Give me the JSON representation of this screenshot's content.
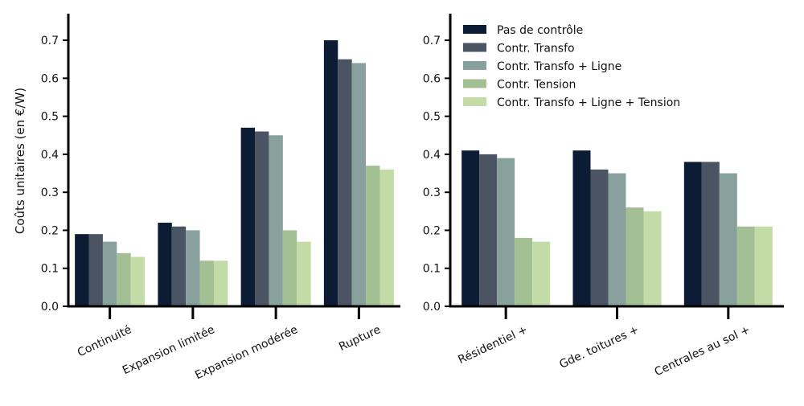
{
  "chart_data": {
    "type": "bar",
    "ylabel": "Coûts unitaires (en €/W)",
    "ylim": [
      0,
      0.77
    ],
    "yticks": [
      0.0,
      0.1,
      0.2,
      0.3,
      0.4,
      0.5,
      0.6,
      0.7
    ],
    "ytick_labels": [
      "0.0",
      "0.1",
      "0.2",
      "0.3",
      "0.4",
      "0.5",
      "0.6",
      "0.7"
    ],
    "legend": {
      "placement": "top-left of right panel",
      "entries": [
        {
          "label": "Pas de contrôle",
          "color": "#0c1c34"
        },
        {
          "label": "Contr. Transfo",
          "color": "#4b5462"
        },
        {
          "label": "Contr. Transfo + Ligne",
          "color": "#88a19d"
        },
        {
          "label": "Contr. Tension",
          "color": "#a3bf94"
        },
        {
          "label": "Contr. Transfo + Ligne + Tension",
          "color": "#c3dba6"
        }
      ]
    },
    "panels": [
      {
        "categories": [
          "Continuité",
          "Expansion limitée",
          "Expansion modérée",
          "Rupture"
        ],
        "series": [
          {
            "name": "Pas de contrôle",
            "values": [
              0.19,
              0.22,
              0.47,
              0.7
            ]
          },
          {
            "name": "Contr. Transfo",
            "values": [
              0.19,
              0.21,
              0.46,
              0.65
            ]
          },
          {
            "name": "Contr. Transfo + Ligne",
            "values": [
              0.17,
              0.2,
              0.45,
              0.64
            ]
          },
          {
            "name": "Contr. Tension",
            "values": [
              0.14,
              0.12,
              0.2,
              0.37
            ]
          },
          {
            "name": "Contr. Transfo + Ligne + Tension",
            "values": [
              0.13,
              0.12,
              0.17,
              0.36
            ]
          }
        ]
      },
      {
        "categories": [
          "Résidentiel +",
          "Gde. toitures +",
          "Centrales au sol +"
        ],
        "series": [
          {
            "name": "Pas de contrôle",
            "values": [
              0.41,
              0.41,
              0.38
            ]
          },
          {
            "name": "Contr. Transfo",
            "values": [
              0.4,
              0.36,
              0.38
            ]
          },
          {
            "name": "Contr. Transfo + Ligne",
            "values": [
              0.39,
              0.35,
              0.35
            ]
          },
          {
            "name": "Contr. Tension",
            "values": [
              0.18,
              0.26,
              0.21
            ]
          },
          {
            "name": "Contr. Transfo + Ligne + Tension",
            "values": [
              0.17,
              0.25,
              0.21
            ]
          }
        ]
      }
    ]
  }
}
